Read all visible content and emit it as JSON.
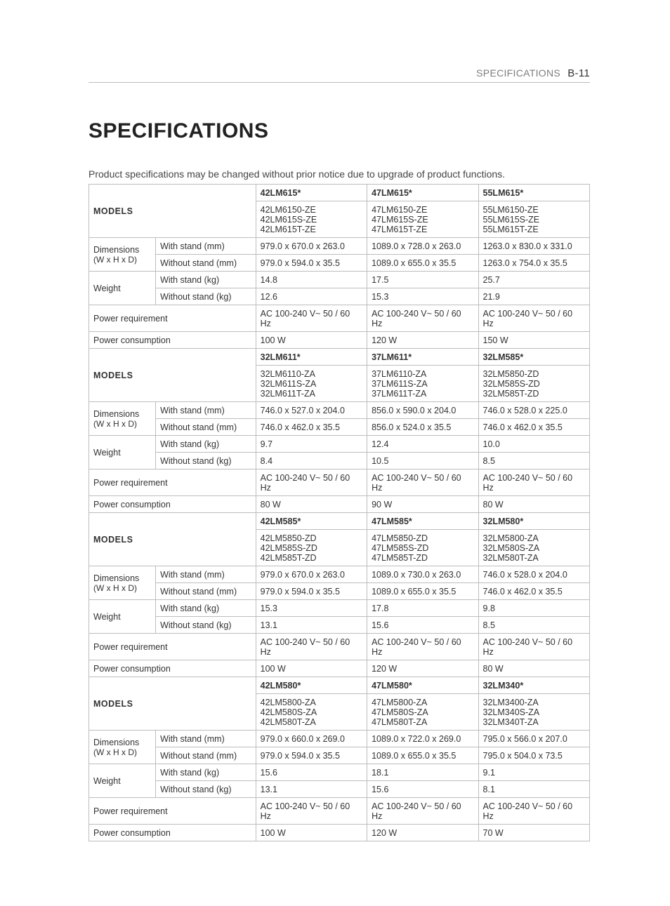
{
  "header": {
    "label": "SPECIFICATIONS",
    "page": "B-11"
  },
  "title": "SPECIFICATIONS",
  "note": "Product specifications may be changed without prior notice due to upgrade of product functions.",
  "labels": {
    "models": "MODELS",
    "dimensions": "Dimensions",
    "whd": "(W x H x D)",
    "weight": "Weight",
    "with_stand_mm": "With stand (mm)",
    "without_stand_mm": "Without stand (mm)",
    "with_stand_kg": "With stand (kg)",
    "without_stand_kg": "Without stand (kg)",
    "power_req": "Power requirement",
    "power_cons": "Power consumption"
  },
  "blocks": [
    {
      "head": [
        "42LM615*",
        "47LM615*",
        "55LM615*"
      ],
      "variants": [
        [
          "42LM6150-ZE",
          "47LM6150-ZE",
          "55LM6150-ZE"
        ],
        [
          "42LM615S-ZE",
          "47LM615S-ZE",
          "55LM615S-ZE"
        ],
        [
          "42LM615T-ZE",
          "47LM615T-ZE",
          "55LM615T-ZE"
        ]
      ],
      "dim_with": [
        "979.0 x 670.0 x 263.0",
        "1089.0 x 728.0 x 263.0",
        "1263.0 x 830.0 x 331.0"
      ],
      "dim_without": [
        "979.0 x 594.0 x 35.5",
        "1089.0 x 655.0 x 35.5",
        "1263.0 x 754.0 x 35.5"
      ],
      "wt_with": [
        "14.8",
        "17.5",
        "25.7"
      ],
      "wt_without": [
        "12.6",
        "15.3",
        "21.9"
      ],
      "power_req": [
        "AC 100-240 V~ 50 / 60 Hz",
        "AC 100-240 V~ 50 / 60 Hz",
        "AC 100-240 V~ 50 / 60 Hz"
      ],
      "power_cons": [
        "100 W",
        "120 W",
        "150 W"
      ]
    },
    {
      "head": [
        "32LM611*",
        "37LM611*",
        "32LM585*"
      ],
      "variants": [
        [
          "32LM6110-ZA",
          "37LM6110-ZA",
          "32LM5850-ZD"
        ],
        [
          "32LM611S-ZA",
          "37LM611S-ZA",
          "32LM585S-ZD"
        ],
        [
          "32LM611T-ZA",
          "37LM611T-ZA",
          "32LM585T-ZD"
        ]
      ],
      "dim_with": [
        "746.0 x 527.0 x 204.0",
        "856.0 x 590.0 x 204.0",
        "746.0 x 528.0 x 225.0"
      ],
      "dim_without": [
        "746.0 x 462.0 x 35.5",
        "856.0 x 524.0 x 35.5",
        "746.0 x 462.0 x 35.5"
      ],
      "wt_with": [
        "9.7",
        "12.4",
        "10.0"
      ],
      "wt_without": [
        "8.4",
        "10.5",
        "8.5"
      ],
      "power_req": [
        "AC 100-240 V~ 50 / 60 Hz",
        "AC 100-240 V~ 50 / 60 Hz",
        "AC 100-240 V~ 50 / 60 Hz"
      ],
      "power_cons": [
        "80 W",
        "90 W",
        "80 W"
      ]
    },
    {
      "head": [
        "42LM585*",
        "47LM585*",
        "32LM580*"
      ],
      "variants": [
        [
          "42LM5850-ZD",
          "47LM5850-ZD",
          "32LM5800-ZA"
        ],
        [
          "42LM585S-ZD",
          "47LM585S-ZD",
          "32LM580S-ZA"
        ],
        [
          "42LM585T-ZD",
          "47LM585T-ZD",
          "32LM580T-ZA"
        ]
      ],
      "dim_with": [
        "979.0 x 670.0 x 263.0",
        "1089.0 x 730.0 x 263.0",
        "746.0 x 528.0 x 204.0"
      ],
      "dim_without": [
        "979.0 x 594.0 x 35.5",
        "1089.0 x 655.0 x 35.5",
        "746.0 x 462.0 x 35.5"
      ],
      "wt_with": [
        "15.3",
        "17.8",
        "9.8"
      ],
      "wt_without": [
        "13.1",
        "15.6",
        "8.5"
      ],
      "power_req": [
        "AC 100-240 V~ 50 / 60 Hz",
        "AC 100-240 V~ 50 / 60 Hz",
        "AC 100-240 V~ 50 / 60 Hz"
      ],
      "power_cons": [
        "100 W",
        "120 W",
        "80 W"
      ]
    },
    {
      "head": [
        "42LM580*",
        "47LM580*",
        "32LM340*"
      ],
      "variants": [
        [
          "42LM5800-ZA",
          "47LM5800-ZA",
          "32LM3400-ZA"
        ],
        [
          "42LM580S-ZA",
          "47LM580S-ZA",
          "32LM340S-ZA"
        ],
        [
          "42LM580T-ZA",
          "47LM580T-ZA",
          "32LM340T-ZA"
        ]
      ],
      "dim_with": [
        "979.0 x 660.0 x 269.0",
        "1089.0 x 722.0 x 269.0",
        "795.0 x 566.0 x 207.0"
      ],
      "dim_without": [
        "979.0 x 594.0 x 35.5",
        "1089.0 x 655.0 x 35.5",
        "795.0 x 504.0 x 73.5"
      ],
      "wt_with": [
        "15.6",
        "18.1",
        "9.1"
      ],
      "wt_without": [
        "13.1",
        "15.6",
        "8.1"
      ],
      "power_req": [
        "AC 100-240 V~ 50 / 60 Hz",
        "AC 100-240 V~ 50 / 60 Hz",
        "AC 100-240 V~ 50 / 60 Hz"
      ],
      "power_cons": [
        "100 W",
        "120 W",
        "70 W"
      ]
    }
  ]
}
